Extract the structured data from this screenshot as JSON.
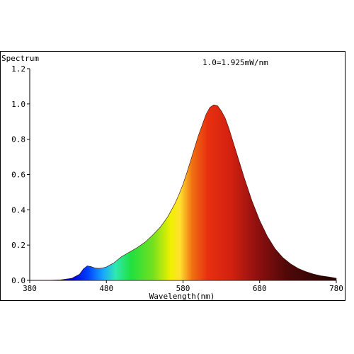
{
  "chart_data": {
    "type": "area",
    "title": "",
    "ylabel": "Spectrum",
    "xlabel": "Wavelength(nm)",
    "annotation": "1.0=1.925mW/nm",
    "xlim": [
      380,
      780
    ],
    "ylim": [
      0,
      1.2
    ],
    "x_ticks": [
      380,
      480,
      580,
      680,
      780
    ],
    "x_tick_labels": [
      "380",
      "480",
      "580",
      "680",
      "780"
    ],
    "y_ticks": [
      0.0,
      0.2,
      0.4,
      0.6,
      0.8,
      1.0,
      1.2
    ],
    "y_tick_labels": [
      "0.0",
      "0.2",
      "0.4",
      "0.6",
      "0.8",
      "1.0",
      "1.2"
    ],
    "grid": false,
    "fill": "visible-spectrum gradient under curve",
    "x": [
      380,
      400,
      420,
      435,
      445,
      450,
      455,
      460,
      465,
      470,
      475,
      480,
      490,
      500,
      510,
      520,
      530,
      540,
      550,
      560,
      570,
      575,
      580,
      585,
      590,
      595,
      600,
      605,
      610,
      615,
      620,
      625,
      630,
      635,
      640,
      645,
      650,
      660,
      670,
      680,
      690,
      700,
      710,
      720,
      730,
      740,
      750,
      760,
      770,
      780
    ],
    "y": [
      0.0,
      0.0,
      0.003,
      0.012,
      0.035,
      0.065,
      0.082,
      0.078,
      0.07,
      0.068,
      0.07,
      0.076,
      0.1,
      0.135,
      0.16,
      0.185,
      0.215,
      0.255,
      0.3,
      0.36,
      0.44,
      0.49,
      0.545,
      0.61,
      0.68,
      0.75,
      0.82,
      0.88,
      0.94,
      0.98,
      0.995,
      0.99,
      0.96,
      0.92,
      0.86,
      0.79,
      0.72,
      0.58,
      0.45,
      0.34,
      0.25,
      0.18,
      0.13,
      0.095,
      0.068,
      0.05,
      0.036,
      0.026,
      0.02,
      0.012
    ]
  }
}
